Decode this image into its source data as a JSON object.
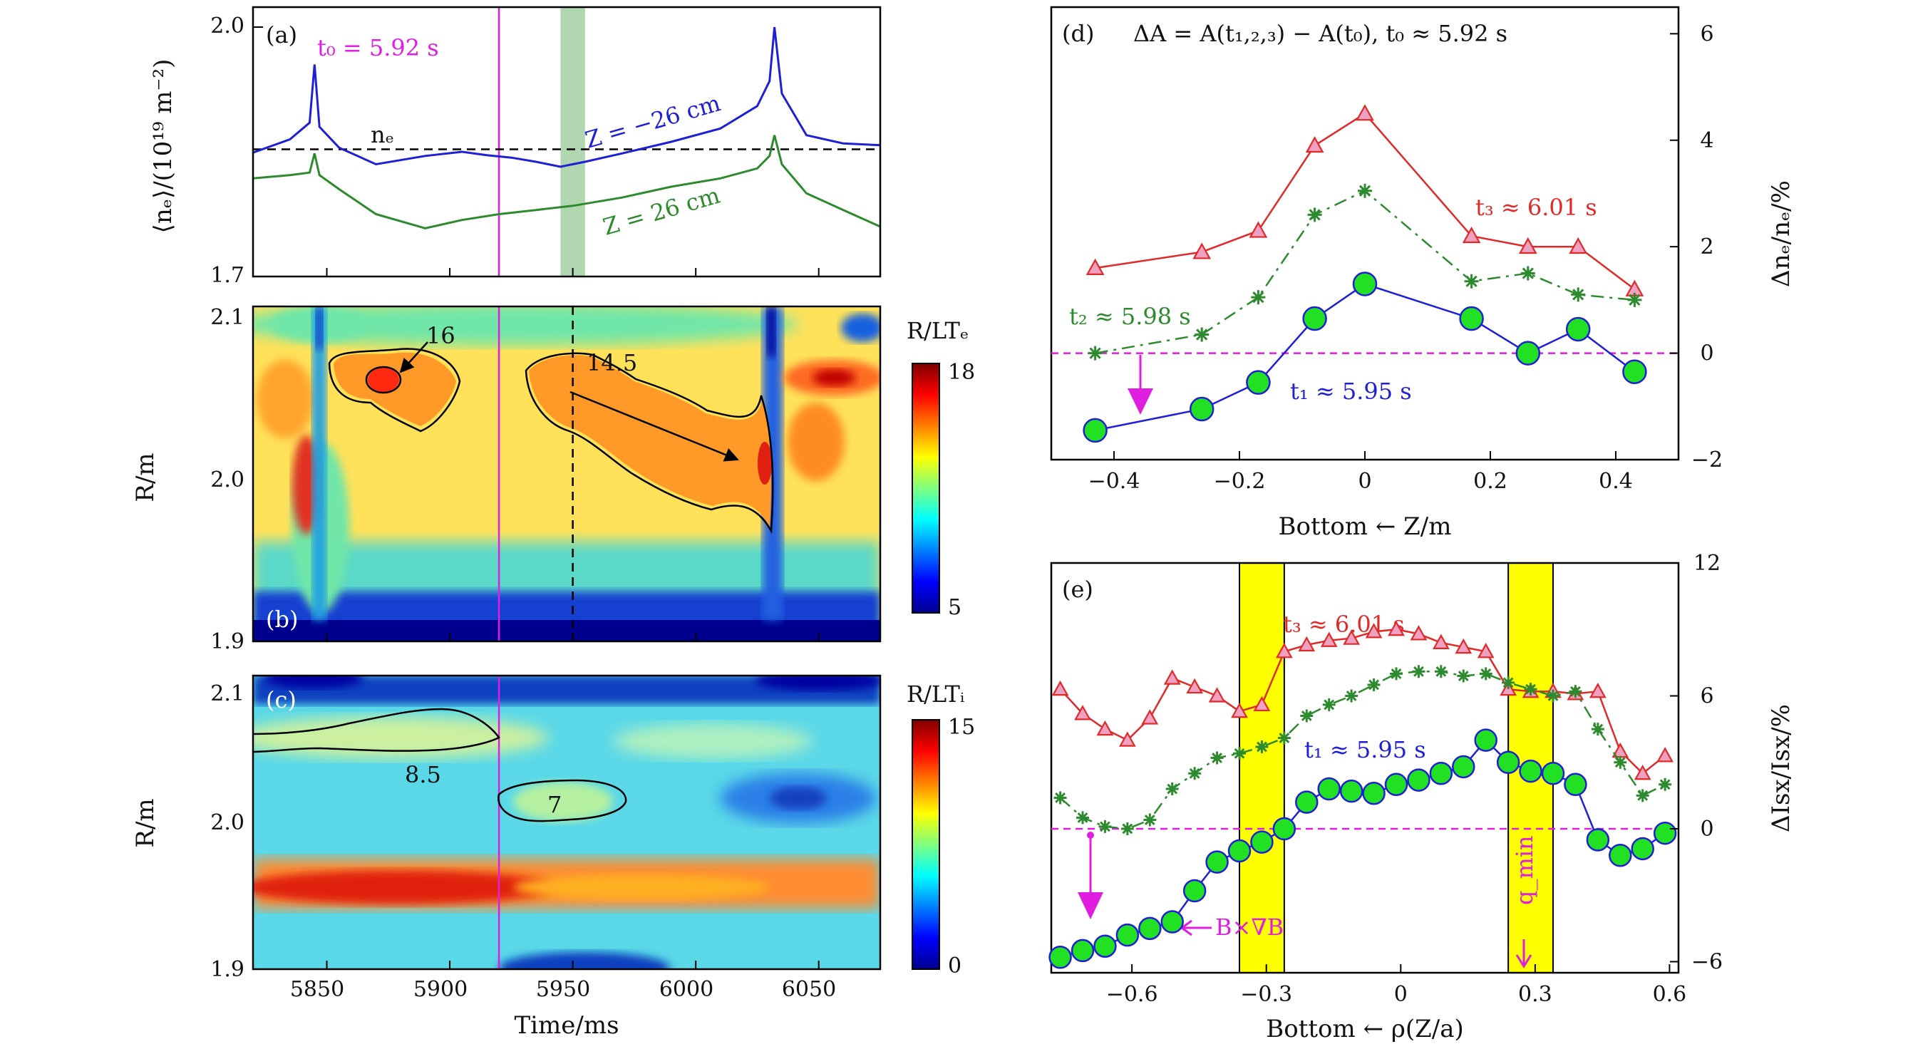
{
  "colors": {
    "blue": "#1f1fd6",
    "green": "#2e8a2e",
    "red": "#e02a2a",
    "magenta": "#e01ee0",
    "lime": "#22e022",
    "pink": "#f0a0c0",
    "yellow": "#ffff00",
    "shade": "#a8d3a8"
  },
  "chart_data": [
    {
      "id": "a",
      "type": "line",
      "panel_label": "(a)",
      "x_range": [
        5820,
        6075
      ],
      "ylim": [
        1.7,
        2.0
      ],
      "ylabel": "⟨nₑ⟩/(10¹⁹ m⁻²)",
      "yticks": [
        "1.7",
        "2.0"
      ],
      "series": [
        {
          "name": "Z = −26 cm",
          "color": "blue",
          "x": [
            5820,
            5835,
            5843,
            5845,
            5847,
            5855,
            5870,
            5890,
            5905,
            5915,
            5925,
            5935,
            5945,
            5955,
            5970,
            5990,
            6010,
            6025,
            6030,
            6032,
            6035,
            6045,
            6060,
            6075
          ],
          "y": [
            1.849,
            1.865,
            1.885,
            1.955,
            1.88,
            1.855,
            1.835,
            1.845,
            1.85,
            1.846,
            1.843,
            1.838,
            1.832,
            1.838,
            1.848,
            1.862,
            1.878,
            1.905,
            1.935,
            2.0,
            1.92,
            1.87,
            1.86,
            1.858
          ]
        },
        {
          "name": "Z = 26 cm",
          "color": "green",
          "x": [
            5820,
            5835,
            5843,
            5845,
            5847,
            5855,
            5870,
            5890,
            5905,
            5920,
            5935,
            5950,
            5970,
            5990,
            6010,
            6025,
            6030,
            6032,
            6035,
            6045,
            6060,
            6075
          ],
          "y": [
            1.818,
            1.822,
            1.825,
            1.848,
            1.822,
            1.805,
            1.775,
            1.758,
            1.768,
            1.775,
            1.78,
            1.785,
            1.795,
            1.808,
            1.818,
            1.83,
            1.845,
            1.87,
            1.835,
            1.8,
            1.78,
            1.76
          ]
        }
      ],
      "hline": {
        "y": 1.853,
        "label": "nₑ"
      },
      "t0_label": "t₀ = 5.92 s",
      "t0": 5920,
      "shaded_band": [
        5945,
        5955
      ]
    },
    {
      "id": "b",
      "type": "heatmap",
      "panel_label": "(b)",
      "xlim": [
        5820,
        6075
      ],
      "ylim": [
        1.9,
        2.1
      ],
      "ylabel": "R/m",
      "yticks": [
        "1.9",
        "2.0",
        "2.1"
      ],
      "colorbar": {
        "label": "R/LTₑ",
        "min": 5,
        "max": 18,
        "ticks": [
          "5",
          "18"
        ]
      },
      "contours": [
        {
          "value": 16,
          "label": "16"
        },
        {
          "value": 14.5,
          "label": "14.5"
        }
      ],
      "dashed_time": 5950,
      "t0": 5920
    },
    {
      "id": "c",
      "type": "heatmap",
      "panel_label": "(c)",
      "xlim": [
        5820,
        6075
      ],
      "ylim": [
        1.9,
        2.1
      ],
      "ylabel": "R/m",
      "yticks": [
        "1.9",
        "2.0",
        "2.1"
      ],
      "xlabel": "Time/ms",
      "xticks": [
        "5850",
        "5900",
        "5950",
        "6000",
        "6050"
      ],
      "colorbar": {
        "label": "R/LTᵢ",
        "min": 0,
        "max": 15,
        "ticks": [
          "0",
          "15"
        ]
      },
      "contours": [
        {
          "value": 8.5,
          "label": "8.5"
        },
        {
          "value": 7,
          "label": "7"
        }
      ],
      "t0": 5920
    },
    {
      "id": "d",
      "type": "line",
      "panel_label": "(d)",
      "title": "ΔA = A(t₁,₂,₃) − A(t₀),  t₀ ≈ 5.92 s",
      "xlim": [
        -0.5,
        0.5
      ],
      "ylim": [
        -2,
        6.5
      ],
      "xlabel": "Bottom ← Z/m",
      "ylabel": "Δnₑ/nₑ/%",
      "xticks": [
        "−0.4",
        "−0.2",
        "0",
        "0.2",
        "0.4"
      ],
      "yticks": [
        "−2",
        "0",
        "2",
        "4",
        "6"
      ],
      "series": [
        {
          "name": "t₃ ≈ 6.01 s",
          "color": "red",
          "marker": "triangle",
          "x": [
            -0.43,
            -0.26,
            -0.17,
            -0.08,
            0,
            0.17,
            0.26,
            0.34,
            0.43
          ],
          "y": [
            1.6,
            1.9,
            2.3,
            3.9,
            4.5,
            2.2,
            2.0,
            2.0,
            1.2
          ]
        },
        {
          "name": "t₂ ≈ 5.98 s",
          "color": "green",
          "marker": "star",
          "x": [
            -0.43,
            -0.26,
            -0.17,
            -0.08,
            0,
            0.17,
            0.26,
            0.34,
            0.43
          ],
          "y": [
            0.0,
            0.35,
            1.05,
            2.6,
            3.05,
            1.35,
            1.5,
            1.1,
            1.0
          ]
        },
        {
          "name": "t₁ ≈ 5.95 s",
          "color": "blue",
          "marker": "circle",
          "x": [
            -0.43,
            -0.26,
            -0.17,
            -0.08,
            0,
            0.17,
            0.26,
            0.34,
            0.43
          ],
          "y": [
            -1.45,
            -1.05,
            -0.55,
            0.65,
            1.3,
            0.65,
            0.0,
            0.45,
            -0.35
          ]
        }
      ],
      "zero_line": 0
    },
    {
      "id": "e",
      "type": "line",
      "panel_label": "(e)",
      "xlim": [
        -0.78,
        0.62
      ],
      "ylim": [
        -6.5,
        12
      ],
      "xlabel": "Bottom ← ρ(Z/a)",
      "ylabel": "ΔIsx/Isx/%",
      "xticks": [
        "−0.6",
        "−0.3",
        "0",
        "0.3",
        "0.6"
      ],
      "yticks": [
        "−6",
        "0",
        "6",
        "12"
      ],
      "yellow_bands": [
        [
          -0.36,
          -0.26
        ],
        [
          0.24,
          0.34
        ]
      ],
      "x": [
        -0.76,
        -0.71,
        -0.66,
        -0.61,
        -0.56,
        -0.51,
        -0.46,
        -0.41,
        -0.36,
        -0.31,
        -0.26,
        -0.21,
        -0.16,
        -0.11,
        -0.06,
        -0.01,
        0.04,
        0.09,
        0.14,
        0.19,
        0.24,
        0.29,
        0.34,
        0.39,
        0.44,
        0.49,
        0.54,
        0.59
      ],
      "series": [
        {
          "name": "t₃ ≈ 6.01 s",
          "color": "red",
          "marker": "triangle",
          "y": [
            6.3,
            5.2,
            4.5,
            4.0,
            5.0,
            6.8,
            6.4,
            6.0,
            5.3,
            5.6,
            8.0,
            8.3,
            8.5,
            8.6,
            8.9,
            9.0,
            8.8,
            8.4,
            8.2,
            8.0,
            6.3,
            6.2,
            6.2,
            6.1,
            6.2,
            3.5,
            2.5,
            3.3
          ]
        },
        {
          "name": "t₂ ≈ 5.98 s",
          "color": "green",
          "marker": "star",
          "y": [
            1.4,
            0.5,
            0.1,
            0.0,
            0.4,
            1.8,
            2.5,
            3.2,
            3.4,
            3.7,
            4.1,
            5.1,
            5.6,
            6.0,
            6.5,
            7.0,
            7.1,
            7.1,
            6.9,
            7.0,
            6.6,
            6.3,
            6.0,
            6.2,
            4.5,
            3.0,
            1.5,
            2.0
          ]
        },
        {
          "name": "t₁ ≈ 5.95 s",
          "color": "blue",
          "marker": "circle",
          "y": [
            -5.8,
            -5.5,
            -5.3,
            -4.8,
            -4.5,
            -4.2,
            -2.8,
            -1.5,
            -1.0,
            -0.6,
            0.0,
            1.2,
            1.8,
            1.7,
            1.6,
            2.0,
            2.2,
            2.5,
            2.8,
            4.0,
            3.0,
            2.6,
            2.5,
            2.0,
            -0.5,
            -1.2,
            -0.9,
            -0.2
          ]
        }
      ],
      "zero_line": 0
    }
  ],
  "annotations": {
    "bgradb": "B×∇B",
    "qmin": "q_min"
  }
}
